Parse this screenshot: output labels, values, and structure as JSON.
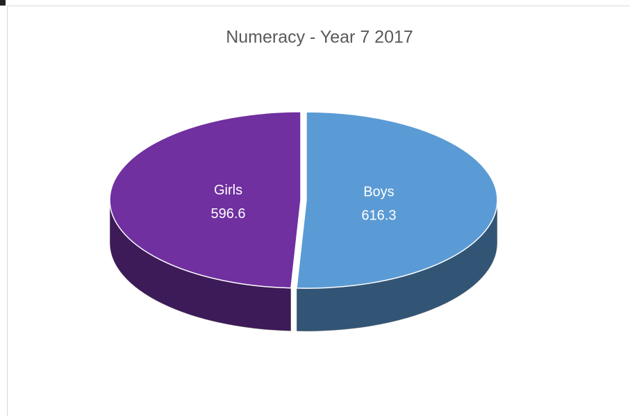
{
  "chart_data": {
    "type": "pie",
    "title": "Numeracy - Year 7 2017",
    "categories": [
      "Boys",
      "Girls"
    ],
    "values": [
      616.3,
      596.6
    ],
    "colors": [
      "#5b9bd5",
      "#7030a0"
    ]
  }
}
